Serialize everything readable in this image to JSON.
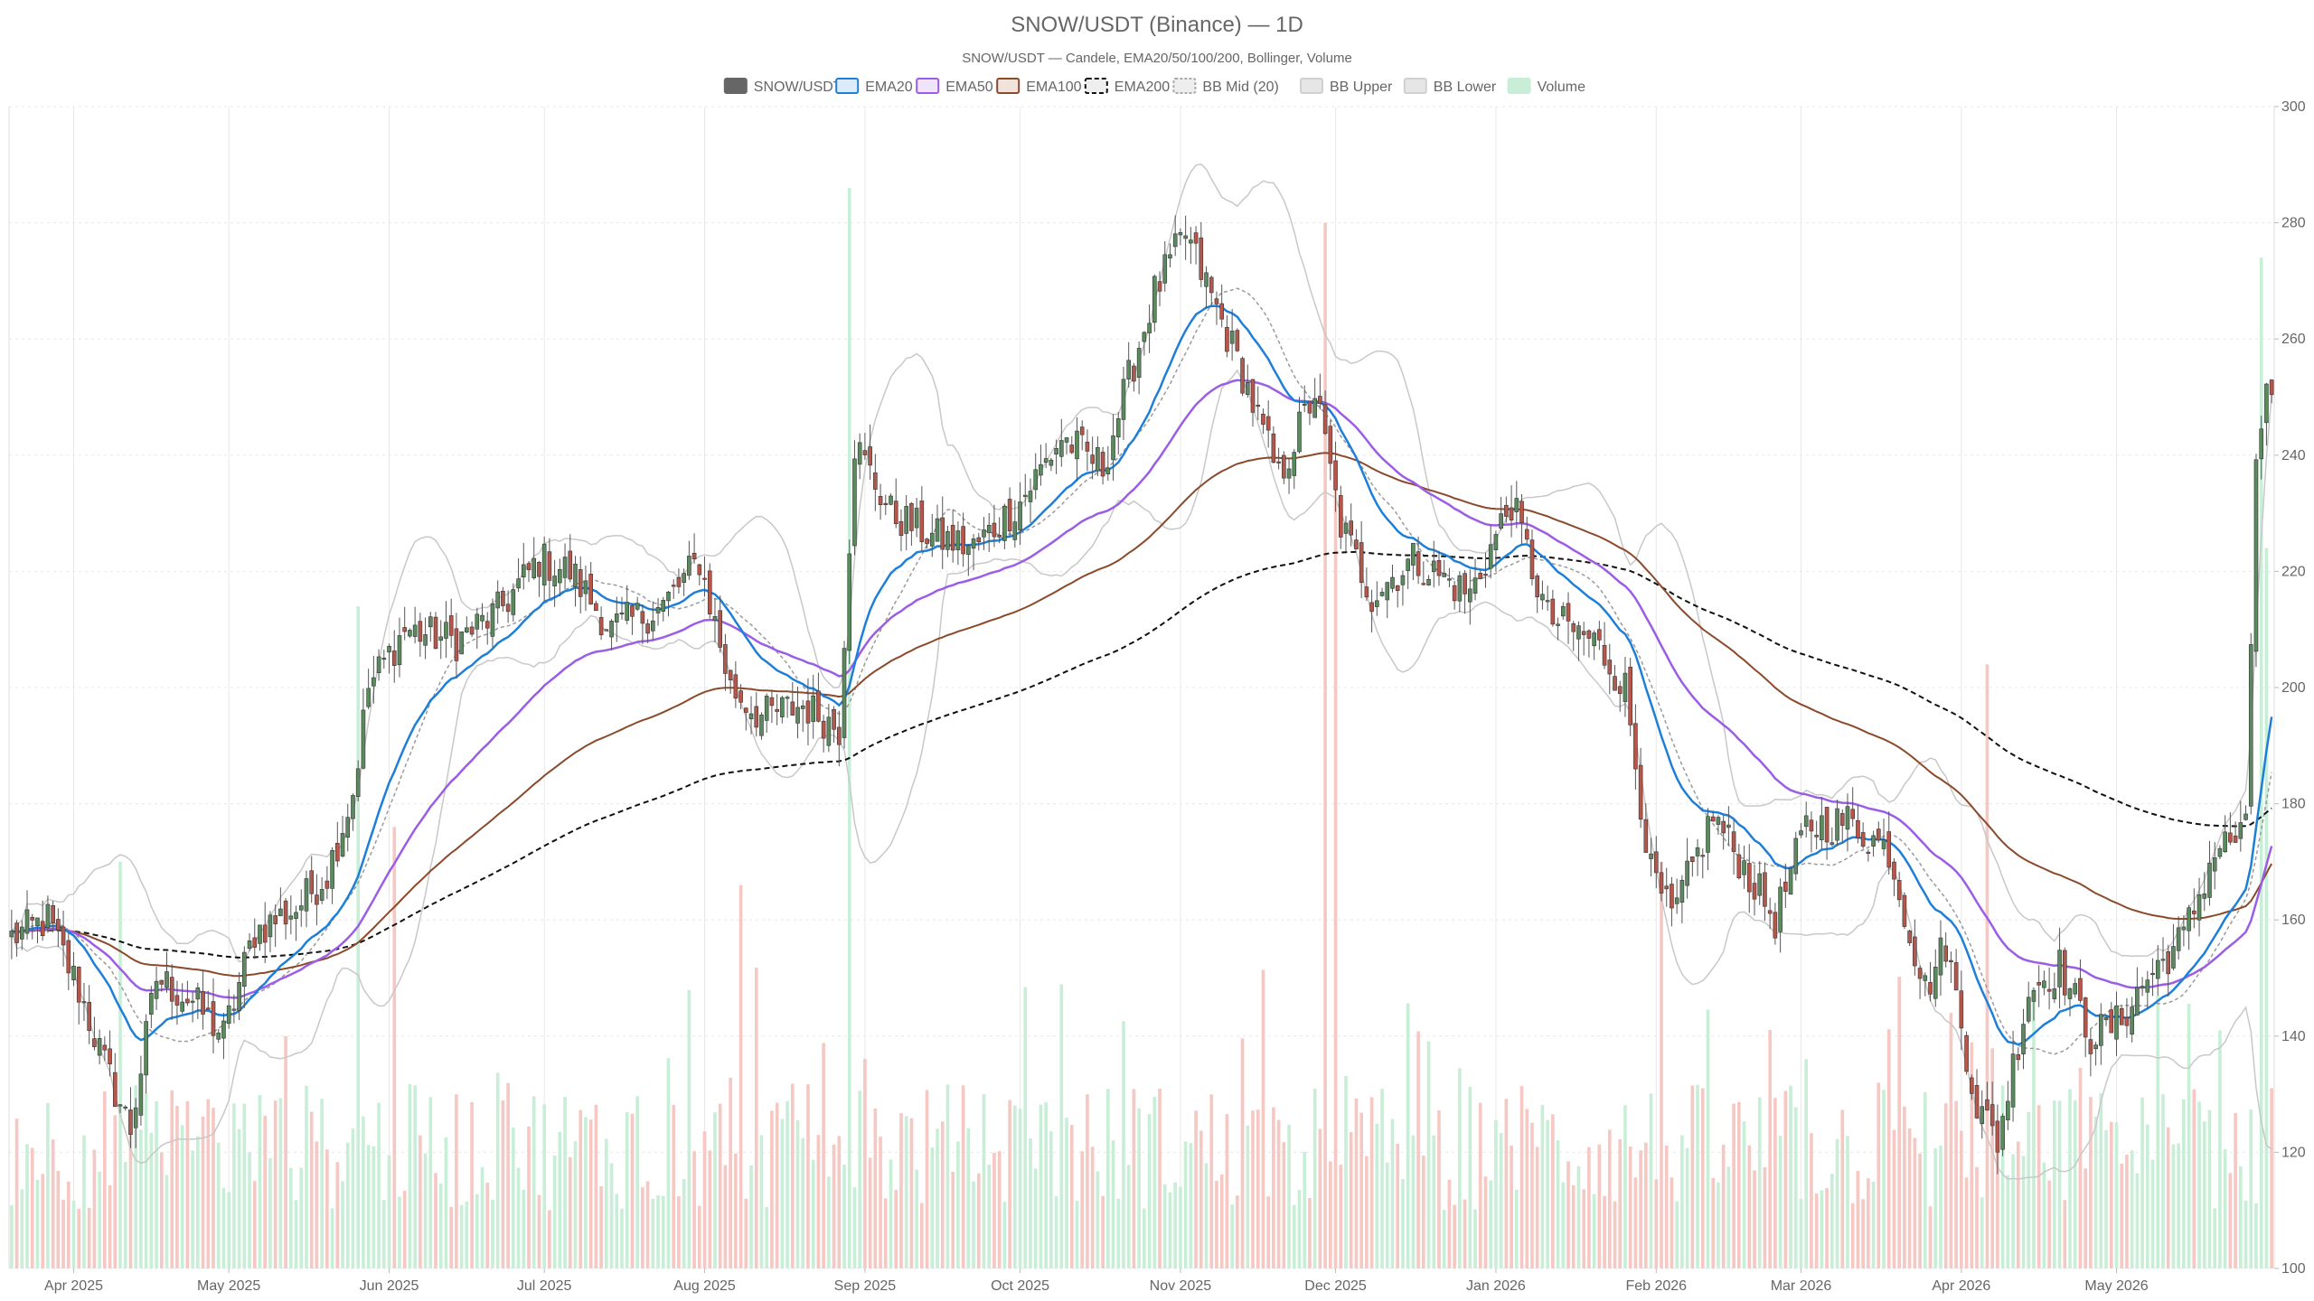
{
  "title": "SNOW/USDT (Binance) — 1D",
  "subtitle": "SNOW/USDT — Candele, EMA20/50/100/200, Bollinger, Volume",
  "colors": {
    "up": "#5a8a5e",
    "down": "#b5574a",
    "ema20": "#1e7fd8",
    "ema50": "#9b5de5",
    "ema100": "#8b4a2b",
    "ema200": "#111111",
    "bb_mid": "#9a9a9a",
    "bb_band": "#c8c8c8",
    "vol_up": "#c9eed8",
    "vol_down": "#f6c8c3",
    "grid": "#e8e8e8"
  },
  "chart_data": {
    "type": "candlestick",
    "ylim": [
      100,
      300
    ],
    "y_ticks": [
      100,
      120,
      140,
      160,
      180,
      200,
      220,
      240,
      260,
      280,
      300
    ],
    "grid": true,
    "legend_position": "top-center",
    "legend": [
      {
        "name": "SNOW/USDT",
        "style": "candle"
      },
      {
        "name": "EMA20",
        "style": "ema20"
      },
      {
        "name": "EMA50",
        "style": "ema50"
      },
      {
        "name": "EMA100",
        "style": "ema100"
      },
      {
        "name": "EMA200",
        "style": "ema200"
      },
      {
        "name": "BB Mid (20)",
        "style": "bbmid"
      },
      {
        "name": "BB Upper",
        "style": "bbband"
      },
      {
        "name": "BB Lower",
        "style": "bbband"
      },
      {
        "name": "Volume",
        "style": "volume"
      }
    ],
    "x_start": "2025-03-20",
    "x_end": "2026-05-31",
    "x_ticks": [
      {
        "date": "2025-04-01",
        "label": "Apr 2025"
      },
      {
        "date": "2025-05-01",
        "label": "May 2025"
      },
      {
        "date": "2025-06-01",
        "label": "Jun 2025"
      },
      {
        "date": "2025-07-01",
        "label": "Jul 2025"
      },
      {
        "date": "2025-08-01",
        "label": "Aug 2025"
      },
      {
        "date": "2025-09-01",
        "label": "Sep 2025"
      },
      {
        "date": "2025-10-01",
        "label": "Oct 2025"
      },
      {
        "date": "2025-11-01",
        "label": "Nov 2025"
      },
      {
        "date": "2025-12-01",
        "label": "Dec 2025"
      },
      {
        "date": "2026-01-01",
        "label": "Jan 2026"
      },
      {
        "date": "2026-02-01",
        "label": "Feb 2026"
      },
      {
        "date": "2026-03-01",
        "label": "Mar 2026"
      },
      {
        "date": "2026-04-01",
        "label": "Apr 2026"
      },
      {
        "date": "2026-05-01",
        "label": "May 2026"
      }
    ],
    "close_path": [
      [
        "2025-03-20",
        157
      ],
      [
        "2025-03-27",
        160
      ],
      [
        "2025-04-02",
        148
      ],
      [
        "2025-04-07",
        135
      ],
      [
        "2025-04-12",
        124
      ],
      [
        "2025-04-17",
        150
      ],
      [
        "2025-04-24",
        146
      ],
      [
        "2025-04-30",
        140
      ],
      [
        "2025-05-06",
        158
      ],
      [
        "2025-05-14",
        162
      ],
      [
        "2025-05-20",
        168
      ],
      [
        "2025-05-25",
        182
      ],
      [
        "2025-05-28",
        200
      ],
      [
        "2025-06-04",
        210
      ],
      [
        "2025-06-14",
        208
      ],
      [
        "2025-06-22",
        213
      ],
      [
        "2025-06-30",
        222
      ],
      [
        "2025-07-06",
        220
      ],
      [
        "2025-07-14",
        210
      ],
      [
        "2025-07-24",
        214
      ],
      [
        "2025-07-31",
        222
      ],
      [
        "2025-08-06",
        200
      ],
      [
        "2025-08-12",
        195
      ],
      [
        "2025-08-20",
        197
      ],
      [
        "2025-08-27",
        193
      ],
      [
        "2025-08-30",
        242
      ],
      [
        "2025-09-06",
        230
      ],
      [
        "2025-09-14",
        226
      ],
      [
        "2025-09-22",
        224
      ],
      [
        "2025-10-01",
        232
      ],
      [
        "2025-10-09",
        243
      ],
      [
        "2025-10-17",
        238
      ],
      [
        "2025-10-27",
        268
      ],
      [
        "2025-11-02",
        278
      ],
      [
        "2025-11-09",
        263
      ],
      [
        "2025-11-13",
        254
      ],
      [
        "2025-11-20",
        236
      ],
      [
        "2025-11-27",
        251
      ],
      [
        "2025-12-02",
        228
      ],
      [
        "2025-12-08",
        216
      ],
      [
        "2025-12-16",
        222
      ],
      [
        "2025-12-27",
        216
      ],
      [
        "2026-01-04",
        232
      ],
      [
        "2026-01-11",
        212
      ],
      [
        "2026-01-20",
        208
      ],
      [
        "2026-01-26",
        200
      ],
      [
        "2026-01-31",
        168
      ],
      [
        "2026-02-04",
        160
      ],
      [
        "2026-02-12",
        178
      ],
      [
        "2026-02-24",
        160
      ],
      [
        "2026-03-02",
        176
      ],
      [
        "2026-03-10",
        177
      ],
      [
        "2026-03-18",
        172
      ],
      [
        "2026-03-25",
        148
      ],
      [
        "2026-03-29",
        156
      ],
      [
        "2026-04-04",
        128
      ],
      [
        "2026-04-08",
        122
      ],
      [
        "2026-04-14",
        148
      ],
      [
        "2026-04-20",
        152
      ],
      [
        "2026-04-26",
        140
      ],
      [
        "2026-05-01",
        142
      ],
      [
        "2026-05-07",
        150
      ],
      [
        "2026-05-14",
        157
      ],
      [
        "2026-05-20",
        172
      ],
      [
        "2026-05-26",
        175
      ],
      [
        "2026-05-28",
        240
      ],
      [
        "2026-05-30",
        250
      ]
    ],
    "vol_spikes": [
      [
        "2025-04-10",
        0.35
      ],
      [
        "2025-05-26",
        0.57
      ],
      [
        "2025-06-02",
        0.38
      ],
      [
        "2025-08-08",
        0.33
      ],
      [
        "2025-08-29",
        0.93
      ],
      [
        "2025-11-29",
        0.9
      ],
      [
        "2025-12-01",
        0.68
      ],
      [
        "2026-02-02",
        0.35
      ],
      [
        "2026-04-06",
        0.52
      ],
      [
        "2026-05-29",
        0.87
      ],
      [
        "2026-05-30",
        0.62
      ]
    ]
  }
}
